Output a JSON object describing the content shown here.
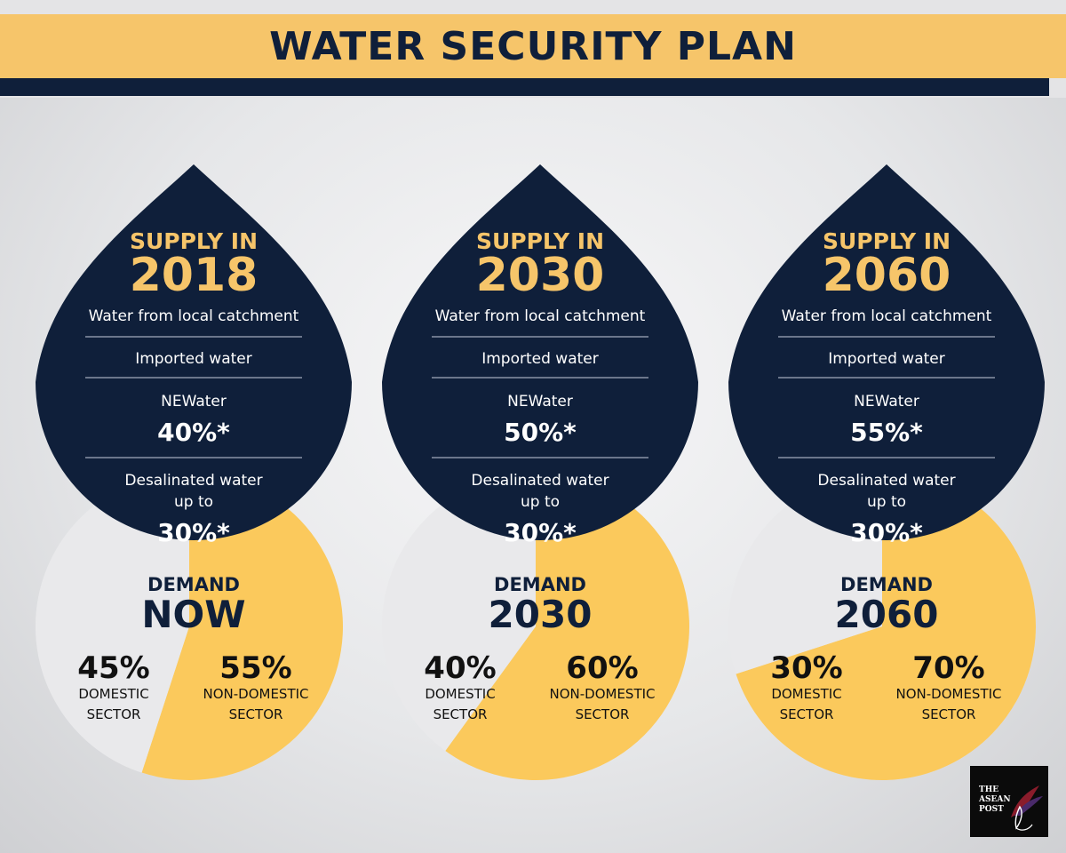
{
  "header": {
    "title": "WATER SECURITY PLAN"
  },
  "logo": {
    "text": "THE ASEAN POST"
  },
  "colors": {
    "navy": "#0f1f3a",
    "gold": "#f6c56a",
    "pie_gold": "#fbc95c",
    "pie_light": "#e9e9eb"
  },
  "chart_data": [
    {
      "type": "pie",
      "supply": {
        "heading": "SUPPLY IN",
        "year": "2018",
        "items": [
          {
            "label": "Water from local catchment",
            "value": ""
          },
          {
            "label": "Imported water",
            "value": ""
          },
          {
            "label": "NEWater",
            "value": "40%*"
          },
          {
            "label": "Desalinated water",
            "label2": "up to",
            "value": "30%*"
          }
        ]
      },
      "demand": {
        "heading": "DEMAND",
        "period": "NOW",
        "slices": [
          {
            "name": "DOMESTIC",
            "name2": "SECTOR",
            "value": 45,
            "label": "45%"
          },
          {
            "name": "NON-DOMESTIC",
            "name2": "SECTOR",
            "value": 55,
            "label": "55%"
          }
        ]
      }
    },
    {
      "type": "pie",
      "supply": {
        "heading": "SUPPLY IN",
        "year": "2030",
        "items": [
          {
            "label": "Water from local catchment",
            "value": ""
          },
          {
            "label": "Imported water",
            "value": ""
          },
          {
            "label": "NEWater",
            "value": "50%*"
          },
          {
            "label": "Desalinated water",
            "label2": "up to",
            "value": "30%*"
          }
        ]
      },
      "demand": {
        "heading": "DEMAND",
        "period": "2030",
        "slices": [
          {
            "name": "DOMESTIC",
            "name2": "SECTOR",
            "value": 40,
            "label": "40%"
          },
          {
            "name": "NON-DOMESTIC",
            "name2": "SECTOR",
            "value": 60,
            "label": "60%"
          }
        ]
      }
    },
    {
      "type": "pie",
      "supply": {
        "heading": "SUPPLY IN",
        "year": "2060",
        "items": [
          {
            "label": "Water from local catchment",
            "value": ""
          },
          {
            "label": "Imported water",
            "value": ""
          },
          {
            "label": "NEWater",
            "value": "55%*"
          },
          {
            "label": "Desalinated water",
            "label2": "up to",
            "value": "30%*"
          }
        ]
      },
      "demand": {
        "heading": "DEMAND",
        "period": "2060",
        "slices": [
          {
            "name": "DOMESTIC",
            "name2": "SECTOR",
            "value": 30,
            "label": "30%"
          },
          {
            "name": "NON-DOMESTIC",
            "name2": "SECTOR",
            "value": 70,
            "label": "70%"
          }
        ]
      }
    }
  ]
}
